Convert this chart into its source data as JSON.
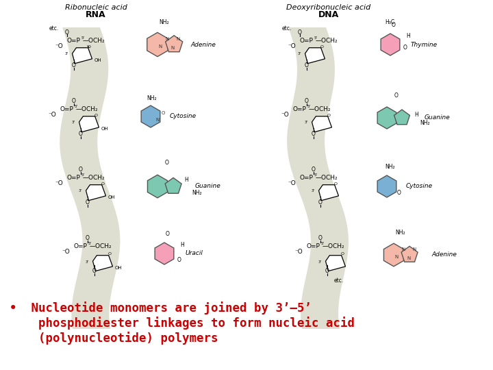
{
  "background_color": "#ffffff",
  "text_color": "#cc0000",
  "title_color": "#000000",
  "ribbon_color": "#dcdccc",
  "adenine_color": "#f5b8a8",
  "cytosine_color": "#7ab0d4",
  "guanine_color": "#7dc8b0",
  "uracil_color": "#f5a0b8",
  "thymine_color": "#f5a0b8",
  "guanine2_color": "#7dc8b0",
  "cytosine2_color": "#7ab0d4",
  "adenine2_color": "#f5b8a8",
  "fig_width": 7.2,
  "fig_height": 5.4,
  "dpi": 100,
  "bullet_lines": [
    "•  Nucleotide monomers are joined by 3’–5’",
    "    phosphodiester linkages to form nucleic acid",
    "    (polynucleotide) polymers"
  ]
}
